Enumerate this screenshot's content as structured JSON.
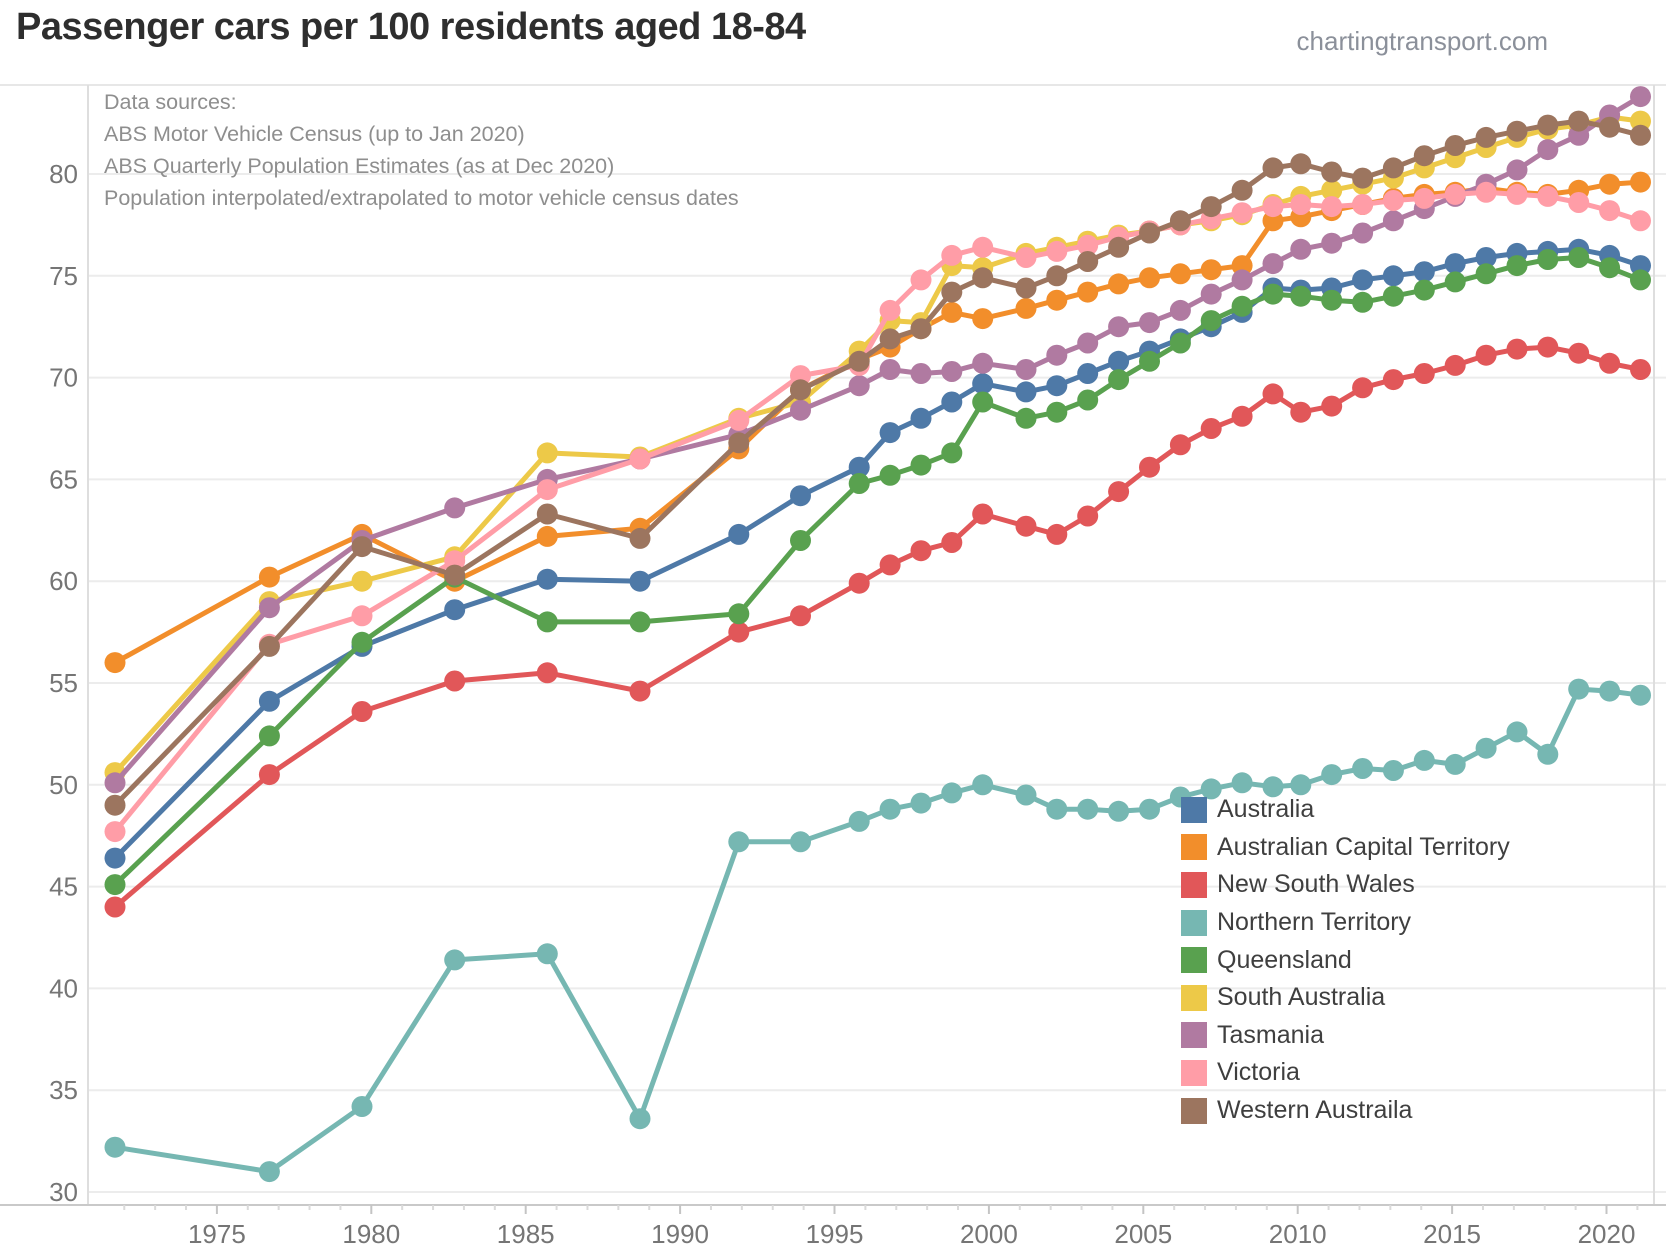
{
  "header": {
    "title": "Passenger cars per 100 residents aged 18-84",
    "watermark": "chartingtransport.com"
  },
  "annotation": {
    "lines": [
      "Data sources:",
      "ABS Motor Vehicle Census (up to Jan 2020)",
      "ABS Quarterly Population Estimates (as at Dec 2020)",
      "Population interpolated/extrapolated to motor vehicle census dates"
    ]
  },
  "chart_data": {
    "type": "line",
    "title": "Passenger cars per 100 residents aged 18-84",
    "xlabel": "",
    "ylabel": "",
    "grid": "horizontal",
    "legend_position": "bottom-right",
    "x_years": [
      1971,
      1976,
      1979,
      1982,
      1985,
      1988,
      1992,
      1994,
      1996,
      1997,
      1998,
      1999,
      2000,
      2001,
      2002,
      2003,
      2004,
      2005,
      2006,
      2007,
      2008,
      2009,
      2010,
      2011,
      2012,
      2013,
      2014,
      2015,
      2016,
      2017,
      2018,
      2019,
      2020,
      2021
    ],
    "x_plot": [
      1971.7,
      1976.7,
      1979.7,
      1982.7,
      1985.7,
      1988.7,
      1991.9,
      1993.9,
      1995.8,
      1996.8,
      1997.8,
      1998.8,
      1999.8,
      2001.2,
      2002.2,
      2003.2,
      2004.2,
      2005.2,
      2006.2,
      2007.2,
      2008.2,
      2009.2,
      2010.1,
      2011.1,
      2012.1,
      2013.1,
      2014.1,
      2015.1,
      2016.1,
      2017.1,
      2018.1,
      2019.1,
      2020.1,
      2021.1
    ],
    "x_ticks": [
      1975,
      1980,
      1985,
      1990,
      1995,
      2000,
      2005,
      2010,
      2015,
      2020
    ],
    "x_tick_labels": [
      "1975",
      "1980",
      "1985",
      "1990",
      "1995",
      "2000",
      "2005",
      "2010",
      "2015",
      "2020"
    ],
    "y_ticks": [
      30,
      35,
      40,
      45,
      50,
      55,
      60,
      65,
      70,
      75,
      80
    ],
    "y_tick_labels": [
      "30",
      "35",
      "40",
      "45",
      "50",
      "55",
      "60",
      "65",
      "70",
      "75",
      "80"
    ],
    "xlim": [
      1970.9,
      2021.9
    ],
    "ylim": [
      29.4,
      84.4
    ],
    "series": [
      {
        "name": "Australia",
        "color": "#4e79a7",
        "values": [
          46.4,
          54.1,
          56.8,
          58.6,
          60.1,
          60.0,
          62.3,
          64.2,
          65.6,
          67.3,
          68.0,
          68.8,
          69.7,
          69.3,
          69.6,
          70.2,
          70.8,
          71.3,
          71.9,
          72.5,
          73.2,
          74.4,
          74.3,
          74.4,
          74.8,
          75.0,
          75.2,
          75.6,
          75.9,
          76.1,
          76.2,
          76.3,
          76.0,
          75.5
        ]
      },
      {
        "name": "Australian Capital Territory",
        "color": "#f28e2b",
        "values": [
          56.0,
          60.2,
          62.3,
          60.0,
          62.2,
          62.6,
          66.5,
          69.4,
          70.9,
          71.5,
          72.4,
          73.2,
          72.9,
          73.4,
          73.8,
          74.2,
          74.6,
          74.9,
          75.1,
          75.3,
          75.5,
          77.7,
          77.9,
          78.2,
          78.5,
          78.8,
          79.0,
          79.1,
          79.3,
          79.1,
          79.0,
          79.2,
          79.5,
          79.6
        ]
      },
      {
        "name": "New South Wales",
        "color": "#e15759",
        "values": [
          44.0,
          50.5,
          53.6,
          55.1,
          55.5,
          54.6,
          57.5,
          58.3,
          59.9,
          60.8,
          61.5,
          61.9,
          63.3,
          62.7,
          62.3,
          63.2,
          64.4,
          65.6,
          66.7,
          67.5,
          68.1,
          69.2,
          68.3,
          68.6,
          69.5,
          69.9,
          70.2,
          70.6,
          71.1,
          71.4,
          71.5,
          71.2,
          70.7,
          70.4
        ]
      },
      {
        "name": "Northern Territory",
        "color": "#76b7b2",
        "values": [
          32.2,
          31.0,
          34.2,
          41.4,
          41.7,
          33.6,
          47.2,
          47.2,
          48.2,
          48.8,
          49.1,
          49.6,
          50.0,
          49.5,
          48.8,
          48.8,
          48.7,
          48.8,
          49.4,
          49.8,
          50.1,
          49.9,
          50.0,
          50.5,
          50.8,
          50.7,
          51.2,
          51.0,
          51.8,
          52.6,
          51.5,
          54.7,
          54.6,
          54.4
        ]
      },
      {
        "name": "Queensland",
        "color": "#59a14f",
        "values": [
          45.1,
          52.4,
          57.0,
          60.2,
          58.0,
          58.0,
          58.4,
          62.0,
          64.8,
          65.2,
          65.7,
          66.3,
          68.8,
          68.0,
          68.3,
          68.9,
          69.9,
          70.8,
          71.7,
          72.8,
          73.5,
          74.1,
          74.0,
          73.8,
          73.7,
          74.0,
          74.3,
          74.7,
          75.1,
          75.5,
          75.8,
          75.9,
          75.4,
          74.8
        ]
      },
      {
        "name": "South Australia",
        "color": "#edc948",
        "values": [
          50.6,
          59.0,
          60.0,
          61.2,
          66.3,
          66.1,
          68.0,
          68.8,
          71.3,
          72.8,
          72.7,
          75.5,
          75.4,
          76.1,
          76.4,
          76.7,
          77.0,
          77.2,
          77.5,
          77.7,
          78.0,
          78.5,
          78.9,
          79.2,
          79.5,
          79.8,
          80.3,
          80.8,
          81.3,
          81.8,
          82.2,
          82.4,
          82.8,
          82.6
        ]
      },
      {
        "name": "Tasmania",
        "color": "#b07aa1",
        "values": [
          50.1,
          58.7,
          62.0,
          63.6,
          65.0,
          66.0,
          67.2,
          68.4,
          69.6,
          70.4,
          70.2,
          70.3,
          70.7,
          70.4,
          71.1,
          71.7,
          72.5,
          72.7,
          73.3,
          74.1,
          74.8,
          75.6,
          76.3,
          76.6,
          77.1,
          77.7,
          78.3,
          78.9,
          79.5,
          80.2,
          81.2,
          81.9,
          82.9,
          83.8
        ]
      },
      {
        "name": "Victoria",
        "color": "#ff9da7",
        "values": [
          47.7,
          56.9,
          58.3,
          61.0,
          64.5,
          66.0,
          67.9,
          70.1,
          70.6,
          73.3,
          74.8,
          76.0,
          76.4,
          75.9,
          76.2,
          76.5,
          76.9,
          77.2,
          77.5,
          77.8,
          78.1,
          78.4,
          78.5,
          78.4,
          78.5,
          78.7,
          78.8,
          79.0,
          79.1,
          79.0,
          78.9,
          78.6,
          78.2,
          77.7
        ]
      },
      {
        "name": "Western Austraila",
        "color": "#9c755f",
        "values": [
          49.0,
          56.8,
          61.7,
          60.3,
          63.3,
          62.1,
          66.8,
          69.4,
          70.8,
          71.9,
          72.4,
          74.2,
          74.9,
          74.4,
          75.0,
          75.7,
          76.4,
          77.1,
          77.7,
          78.4,
          79.2,
          80.3,
          80.5,
          80.1,
          79.8,
          80.3,
          80.9,
          81.4,
          81.8,
          82.1,
          82.4,
          82.6,
          82.3,
          81.9
        ]
      }
    ],
    "style": {
      "gridline_color": "#ececec",
      "axis_line_color": "#c9c9c9",
      "border_color": "#dedede",
      "tick_label_color": "#757575",
      "line_width": 5,
      "marker_radius": 10.5
    }
  }
}
